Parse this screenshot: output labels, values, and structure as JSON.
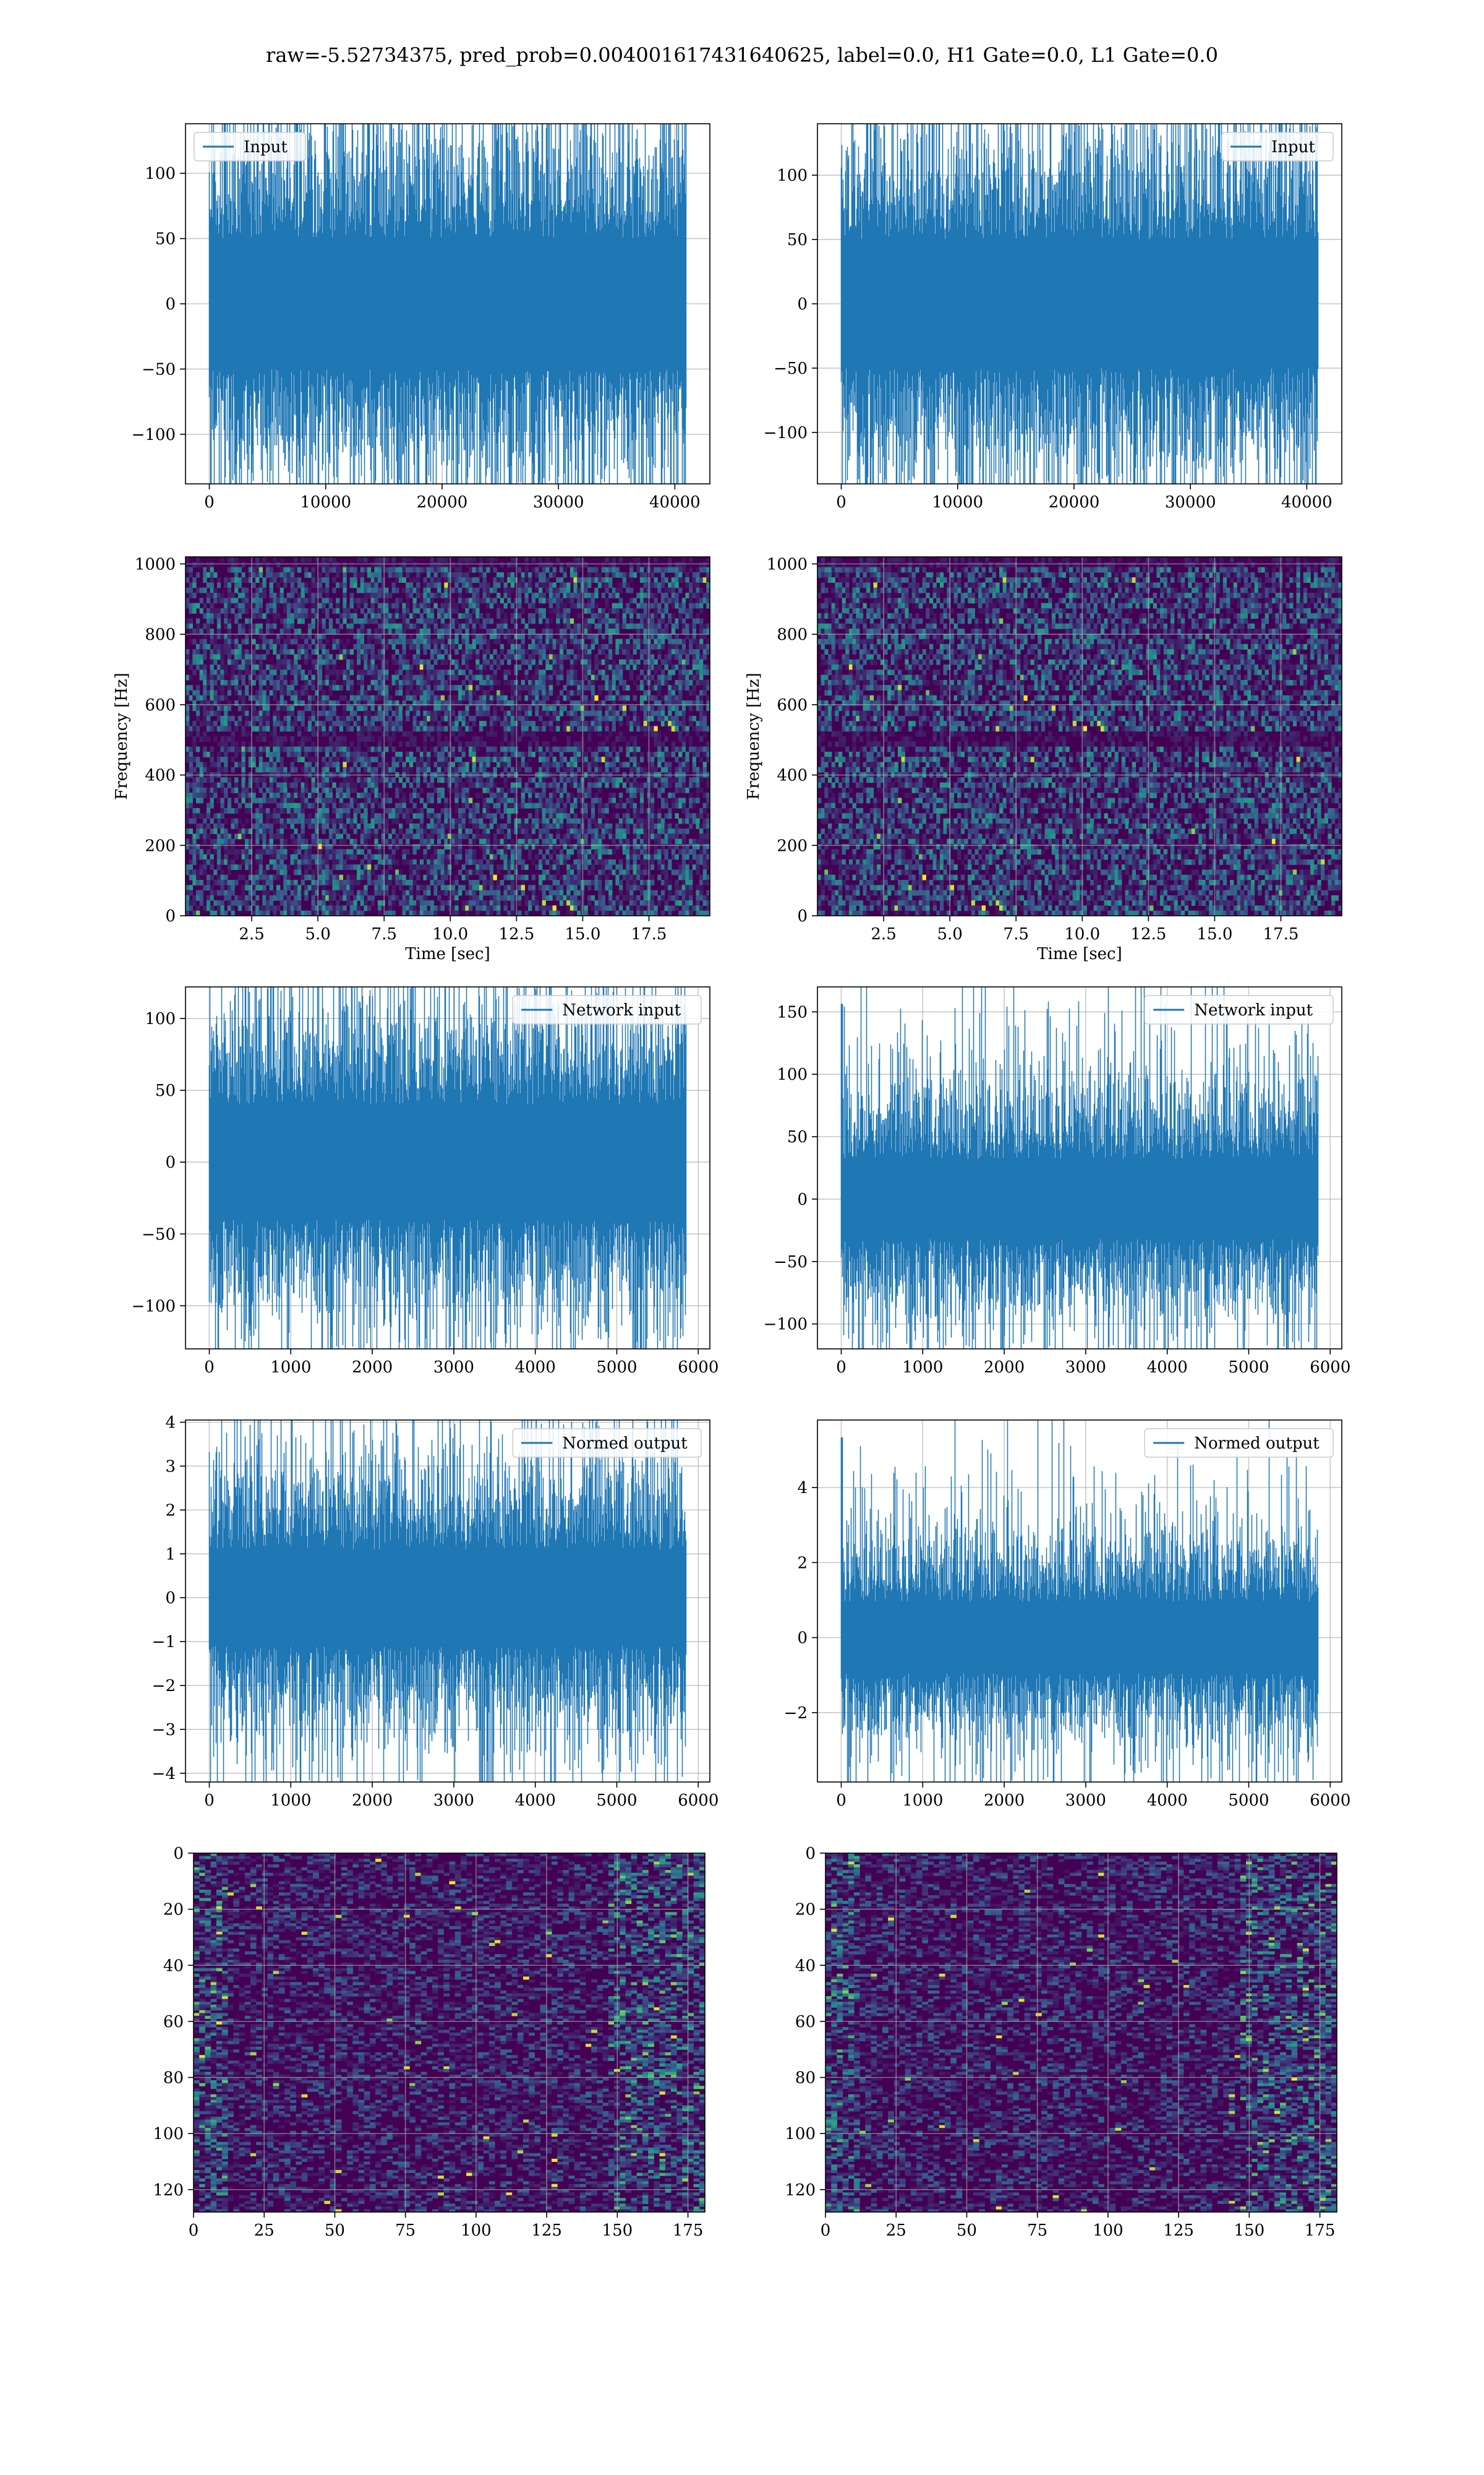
{
  "figure": {
    "suptitle": "raw=-5.52734375, pred_prob=0.004001617431640625, label=0.0, H1 Gate=0.0, L1 Gate=0.0"
  },
  "colors": {
    "series": "#1f77b4",
    "grid": "#b0b0b0",
    "viridis_dark": "#440154",
    "viridis_mid": "#21918c",
    "viridis_bright": "#fde725"
  },
  "chart_data": [
    {
      "id": "r0c0",
      "type": "line",
      "legend_loc": "upper left",
      "series": [
        {
          "name": "Input",
          "x_range": [
            0,
            40960
          ],
          "envelope": [
            -95,
            95
          ],
          "core": [
            -50,
            50
          ]
        }
      ],
      "xlim": [
        -2048,
        43008
      ],
      "ylim": [
        -138,
        138
      ],
      "xticks": [
        0,
        10000,
        20000,
        30000,
        40000
      ],
      "xtick_labels": [
        "0",
        "10000",
        "20000",
        "30000",
        "40000"
      ],
      "yticks": [
        -100,
        -50,
        0,
        50,
        100
      ],
      "ytick_labels": [
        "−100",
        "−50",
        "0",
        "50",
        "100"
      ],
      "xlabel": "",
      "ylabel": "",
      "grid": true
    },
    {
      "id": "r0c1",
      "type": "line",
      "legend_loc": "upper right",
      "series": [
        {
          "name": "Input",
          "x_range": [
            0,
            40960
          ],
          "envelope": [
            -95,
            95
          ],
          "core": [
            -50,
            50
          ]
        }
      ],
      "xlim": [
        -2048,
        43008
      ],
      "ylim": [
        -140,
        140
      ],
      "xticks": [
        0,
        10000,
        20000,
        30000,
        40000
      ],
      "xtick_labels": [
        "0",
        "10000",
        "20000",
        "30000",
        "40000"
      ],
      "yticks": [
        -100,
        -50,
        0,
        50,
        100
      ],
      "ytick_labels": [
        "−100",
        "−50",
        "0",
        "50",
        "100"
      ],
      "xlabel": "",
      "ylabel": "",
      "grid": true
    },
    {
      "id": "r1c0",
      "type": "heatmap",
      "colormap": "viridis",
      "xlim": [
        0,
        19.8
      ],
      "ylim": [
        0,
        1020
      ],
      "xticks": [
        2.5,
        5,
        7.5,
        10,
        12.5,
        15,
        17.5
      ],
      "xtick_labels": [
        "2.5",
        "5.0",
        "7.5",
        "10.0",
        "12.5",
        "15.0",
        "17.5"
      ],
      "yticks": [
        0,
        200,
        400,
        600,
        800,
        1000
      ],
      "ytick_labels": [
        "0",
        "200",
        "400",
        "600",
        "800",
        "1000"
      ],
      "xlabel": "Time [sec]",
      "ylabel": "Frequency [Hz]",
      "grid": true
    },
    {
      "id": "r1c1",
      "type": "heatmap",
      "colormap": "viridis",
      "xlim": [
        0,
        19.8
      ],
      "ylim": [
        0,
        1020
      ],
      "xticks": [
        2.5,
        5,
        7.5,
        10,
        12.5,
        15,
        17.5
      ],
      "xtick_labels": [
        "2.5",
        "5.0",
        "7.5",
        "10.0",
        "12.5",
        "15.0",
        "17.5"
      ],
      "yticks": [
        0,
        200,
        400,
        600,
        800,
        1000
      ],
      "ytick_labels": [
        "0",
        "200",
        "400",
        "600",
        "800",
        "1000"
      ],
      "xlabel": "Time [sec]",
      "ylabel": "Frequency [Hz]",
      "grid": true
    },
    {
      "id": "r2c0",
      "type": "line",
      "legend_loc": "upper right",
      "series": [
        {
          "name": "Network input",
          "x_range": [
            0,
            5850
          ],
          "envelope": [
            -75,
            75
          ],
          "core": [
            -40,
            40
          ]
        }
      ],
      "xlim": [
        -292,
        6142
      ],
      "ylim": [
        -130,
        122
      ],
      "xticks": [
        0,
        1000,
        2000,
        3000,
        4000,
        5000,
        6000
      ],
      "xtick_labels": [
        "0",
        "1000",
        "2000",
        "3000",
        "4000",
        "5000",
        "6000"
      ],
      "yticks": [
        -100,
        -50,
        0,
        50,
        100
      ],
      "ytick_labels": [
        "−100",
        "−50",
        "0",
        "50",
        "100"
      ],
      "xlabel": "",
      "ylabel": "",
      "grid": true
    },
    {
      "id": "r2c1",
      "type": "line",
      "legend_loc": "upper right",
      "series": [
        {
          "name": "Network input",
          "x_range": [
            0,
            5850
          ],
          "envelope": [
            -70,
            70
          ],
          "core": [
            -32,
            32
          ]
        }
      ],
      "xlim": [
        -292,
        6142
      ],
      "ylim": [
        -120,
        170
      ],
      "xticks": [
        0,
        1000,
        2000,
        3000,
        4000,
        5000,
        6000
      ],
      "xtick_labels": [
        "0",
        "1000",
        "2000",
        "3000",
        "4000",
        "5000",
        "6000"
      ],
      "yticks": [
        -100,
        -50,
        0,
        50,
        100,
        150
      ],
      "ytick_labels": [
        "−100",
        "−50",
        "0",
        "50",
        "100",
        "150"
      ],
      "xlabel": "",
      "ylabel": "",
      "grid": true
    },
    {
      "id": "r3c0",
      "type": "line",
      "legend_loc": "upper right",
      "series": [
        {
          "name": "Normed output",
          "x_range": [
            0,
            5850
          ],
          "envelope": [
            -2.2,
            2.2
          ],
          "core": [
            -1.1,
            1.1
          ]
        }
      ],
      "xlim": [
        -292,
        6142
      ],
      "ylim": [
        -4.2,
        4.05
      ],
      "xticks": [
        0,
        1000,
        2000,
        3000,
        4000,
        5000,
        6000
      ],
      "xtick_labels": [
        "0",
        "1000",
        "2000",
        "3000",
        "4000",
        "5000",
        "6000"
      ],
      "yticks": [
        -4,
        -3,
        -2,
        -1,
        0,
        1,
        2,
        3,
        4
      ],
      "ytick_labels": [
        "−4",
        "−3",
        "−2",
        "−1",
        "0",
        "1",
        "2",
        "3",
        "4"
      ],
      "xlabel": "",
      "ylabel": "",
      "grid": true
    },
    {
      "id": "r3c1",
      "type": "line",
      "legend_loc": "upper right",
      "series": [
        {
          "name": "Normed output",
          "x_range": [
            0,
            5850
          ],
          "envelope": [
            -2.0,
            2.0
          ],
          "core": [
            -0.95,
            0.95
          ]
        }
      ],
      "xlim": [
        -292,
        6142
      ],
      "ylim": [
        -3.85,
        5.8
      ],
      "xticks": [
        0,
        1000,
        2000,
        3000,
        4000,
        5000,
        6000
      ],
      "xtick_labels": [
        "0",
        "1000",
        "2000",
        "3000",
        "4000",
        "5000",
        "6000"
      ],
      "yticks": [
        -2,
        0,
        2,
        4
      ],
      "ytick_labels": [
        "−2",
        "0",
        "2",
        "4"
      ],
      "xlabel": "",
      "ylabel": "",
      "grid": true
    },
    {
      "id": "r4c0",
      "type": "heatmap",
      "colormap": "viridis",
      "y_inverted": true,
      "xlim": [
        0,
        181
      ],
      "ylim": [
        128,
        0
      ],
      "xticks": [
        0,
        25,
        50,
        75,
        100,
        125,
        150,
        175
      ],
      "xtick_labels": [
        "0",
        "25",
        "50",
        "75",
        "100",
        "125",
        "150",
        "175"
      ],
      "yticks": [
        0,
        20,
        40,
        60,
        80,
        100,
        120
      ],
      "ytick_labels": [
        "0",
        "20",
        "40",
        "60",
        "80",
        "100",
        "120"
      ],
      "xlabel": "",
      "ylabel": "",
      "grid": true
    },
    {
      "id": "r4c1",
      "type": "heatmap",
      "colormap": "viridis",
      "y_inverted": true,
      "xlim": [
        0,
        181
      ],
      "ylim": [
        128,
        0
      ],
      "xticks": [
        0,
        25,
        50,
        75,
        100,
        125,
        150,
        175
      ],
      "xtick_labels": [
        "0",
        "25",
        "50",
        "75",
        "100",
        "125",
        "150",
        "175"
      ],
      "yticks": [
        0,
        20,
        40,
        60,
        80,
        100,
        120
      ],
      "ytick_labels": [
        "0",
        "20",
        "40",
        "60",
        "80",
        "100",
        "120"
      ],
      "xlabel": "",
      "ylabel": "",
      "grid": true
    }
  ]
}
